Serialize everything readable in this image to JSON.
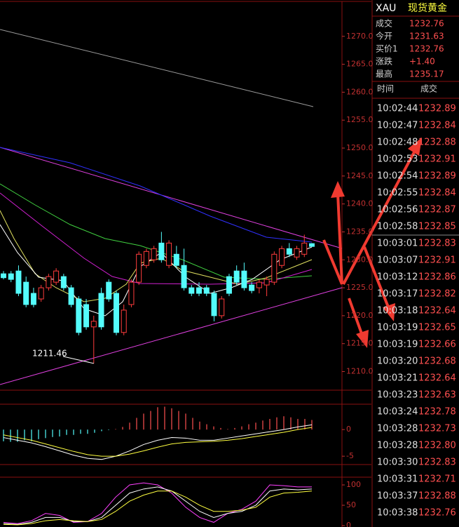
{
  "header": {
    "symbol": "XAU",
    "name": "现货黄金"
  },
  "quote": [
    {
      "label": "成交",
      "value": "1232.76"
    },
    {
      "label": "今开",
      "value": "1231.63"
    },
    {
      "label": "买价1",
      "value": "1232.76"
    },
    {
      "label": "涨跌",
      "value": "+1.40"
    },
    {
      "label": "最高",
      "value": "1235.17"
    }
  ],
  "ticks": {
    "columns": [
      "时间",
      "成交"
    ],
    "rows": [
      [
        "10:02:44",
        "1232.89"
      ],
      [
        "10:02:47",
        "1232.84"
      ],
      [
        "10:02:48",
        "1232.88"
      ],
      [
        "10:02:53",
        "1232.91"
      ],
      [
        "10:02:54",
        "1232.89"
      ],
      [
        "10:02:55",
        "1232.84"
      ],
      [
        "10:02:56",
        "1232.87"
      ],
      [
        "10:02:58",
        "1232.85"
      ],
      [
        "10:03:01",
        "1232.83"
      ],
      [
        "10:03:07",
        "1232.91"
      ],
      [
        "10:03:12",
        "1232.86"
      ],
      [
        "10:03:17",
        "1232.82"
      ],
      [
        "10:03:18",
        "1232.64"
      ],
      [
        "10:03:19",
        "1232.65"
      ],
      [
        "10:03:19",
        "1232.66"
      ],
      [
        "10:03:20",
        "1232.68"
      ],
      [
        "10:03:21",
        "1232.64"
      ],
      [
        "10:03:23",
        "1232.63"
      ],
      [
        "10:03:24",
        "1232.78"
      ],
      [
        "10:03:28",
        "1232.73"
      ],
      [
        "10:03:28",
        "1232.80"
      ],
      [
        "10:03:30",
        "1232.83"
      ],
      [
        "10:03:31",
        "1232.71"
      ],
      [
        "10:03:37",
        "1232.88"
      ],
      [
        "10:03:38",
        "1232.76"
      ]
    ]
  },
  "chart_data": [
    {
      "type": "candlestick",
      "up_color": "#ff3c3c",
      "down_color": "#54fcfc",
      "open": [
        1227.5,
        1227.5,
        1228,
        1226,
        1224,
        1223,
        1225,
        1226,
        1227,
        1225,
        1223,
        1222,
        1218,
        1224,
        1226,
        1224,
        1217,
        1222,
        1226,
        1229,
        1230,
        1233,
        1229,
        1231,
        1229,
        1225,
        1225,
        1225,
        1224,
        1220,
        1227,
        1228,
        1228,
        1225.5,
        1225,
        1225.5,
        1226,
        1229,
        1232,
        1230.5,
        1231,
        1232.9
      ],
      "high": [
        1228,
        1228,
        1229,
        1227,
        1225,
        1225.5,
        1227.5,
        1228.5,
        1227.5,
        1225.5,
        1223.5,
        1223,
        1220,
        1225,
        1226.5,
        1224.5,
        1222,
        1226.5,
        1231.5,
        1232,
        1232.5,
        1235,
        1233.5,
        1232.5,
        1232,
        1225.5,
        1226,
        1225.5,
        1224.5,
        1223.5,
        1227.5,
        1229,
        1229.5,
        1226,
        1226.5,
        1227,
        1231.5,
        1232.5,
        1233,
        1232.5,
        1234.5,
        1233
      ],
      "low": [
        1226.5,
        1226,
        1223.5,
        1221.5,
        1221.5,
        1222.5,
        1224.5,
        1225.5,
        1224.5,
        1221.5,
        1216.5,
        1217.5,
        1211.46,
        1217.5,
        1222.5,
        1216.5,
        1216.5,
        1221.5,
        1225.5,
        1228.5,
        1229.5,
        1229.5,
        1228.5,
        1228.5,
        1224.5,
        1223.5,
        1223.5,
        1223.5,
        1219,
        1219.5,
        1223.5,
        1225.5,
        1224.5,
        1224,
        1224,
        1223.5,
        1225.5,
        1228.5,
        1230.5,
        1230,
        1230.5,
        1232.3
      ],
      "close": [
        1226.8,
        1226.5,
        1224,
        1222,
        1222,
        1225,
        1227,
        1228,
        1225,
        1222,
        1217,
        1218,
        1219,
        1218,
        1223,
        1217,
        1221,
        1226,
        1231,
        1231.5,
        1232,
        1230,
        1233,
        1229,
        1225,
        1224,
        1224,
        1224,
        1220,
        1223,
        1224,
        1226,
        1225,
        1224.5,
        1226,
        1226.5,
        1231,
        1232,
        1231,
        1232,
        1233,
        1232.4
      ],
      "ylim": [
        1206.8,
        1276.5
      ],
      "yticks": [
        {
          "value": 1270,
          "label": "1270.0"
        },
        {
          "value": 1265,
          "label": "1265.0"
        },
        {
          "value": 1260,
          "label": "1260.0"
        },
        {
          "value": 1255,
          "label": "1255.0"
        },
        {
          "value": 1250,
          "label": "1250.0"
        },
        {
          "value": 1245,
          "label": "1245.0"
        },
        {
          "value": 1240,
          "label": "1240.0"
        },
        {
          "value": 1235,
          "label": "1235.0"
        },
        {
          "value": 1230,
          "label": "1230.0"
        },
        {
          "value": 1225,
          "label": "1225.0"
        },
        {
          "value": 1220,
          "label": "1220.0"
        },
        {
          "value": 1215,
          "label": "1215.0"
        },
        {
          "value": 1210,
          "label": "1210.0"
        }
      ]
    },
    {
      "type": "bar",
      "positive_color": "#ff5050",
      "negative_color": "#54fcfc",
      "values": [
        -2.2,
        -2.3,
        -2.3,
        -2.0,
        -2.2,
        -1.8,
        -1.6,
        -1.4,
        -1.3,
        -1.0,
        -1.0,
        -0.8,
        -0.8,
        -0.6,
        -0.3,
        -0.1,
        0.1,
        0.5,
        1.3,
        2.2,
        3.0,
        3.5,
        4.2,
        4.3,
        4.0,
        3.5,
        3.0,
        2.2,
        1.5,
        1.0,
        0.6,
        0.3,
        0.1,
        0.3,
        0.6,
        1.0,
        1.3,
        1.7,
        2.0,
        2.3,
        2.5,
        2.3,
        2.0,
        2.0,
        1.8
      ],
      "series": [
        {
          "color": "#ffffff",
          "values": [
            -1.5,
            -2.0,
            -2.5,
            -3.2,
            -4.0,
            -4.8,
            -5.4,
            -5.6,
            -5.0,
            -4.0,
            -2.8,
            -2.0,
            -1.5,
            -1.6,
            -2.0,
            -2.0,
            -1.6,
            -1.2,
            -0.8,
            -0.4,
            0.0,
            0.5,
            0.9
          ]
        },
        {
          "color": "#ffff40",
          "values": [
            -1.0,
            -1.5,
            -2.0,
            -2.7,
            -3.4,
            -4.1,
            -4.7,
            -5.0,
            -5.0,
            -4.6,
            -4.0,
            -3.3,
            -2.7,
            -2.4,
            -2.3,
            -2.2,
            -2.0,
            -1.7,
            -1.3,
            -0.9,
            -0.5,
            0.0,
            0.4
          ]
        }
      ],
      "ylim": [
        -6.3,
        4.5
      ],
      "yticks": [
        0,
        -5
      ]
    },
    {
      "type": "line",
      "series": [
        {
          "color": "#ff40ff",
          "values": [
            8,
            5,
            12,
            30,
            25,
            8,
            10,
            30,
            70,
            100,
            105,
            100,
            80,
            45,
            20,
            8,
            30,
            40,
            60,
            100,
            98,
            95,
            95
          ]
        },
        {
          "color": "#ffffff",
          "values": [
            5,
            3,
            8,
            20,
            20,
            10,
            10,
            20,
            50,
            80,
            90,
            95,
            85,
            60,
            35,
            20,
            30,
            35,
            50,
            85,
            90,
            88,
            90
          ]
        },
        {
          "color": "#ffff40",
          "values": [
            3,
            2,
            5,
            12,
            15,
            12,
            10,
            15,
            35,
            60,
            75,
            85,
            85,
            70,
            50,
            35,
            35,
            38,
            45,
            70,
            80,
            82,
            85
          ]
        }
      ],
      "ylim": [
        -3.4,
        119
      ],
      "yticks": [
        0,
        50,
        100
      ]
    }
  ]
}
